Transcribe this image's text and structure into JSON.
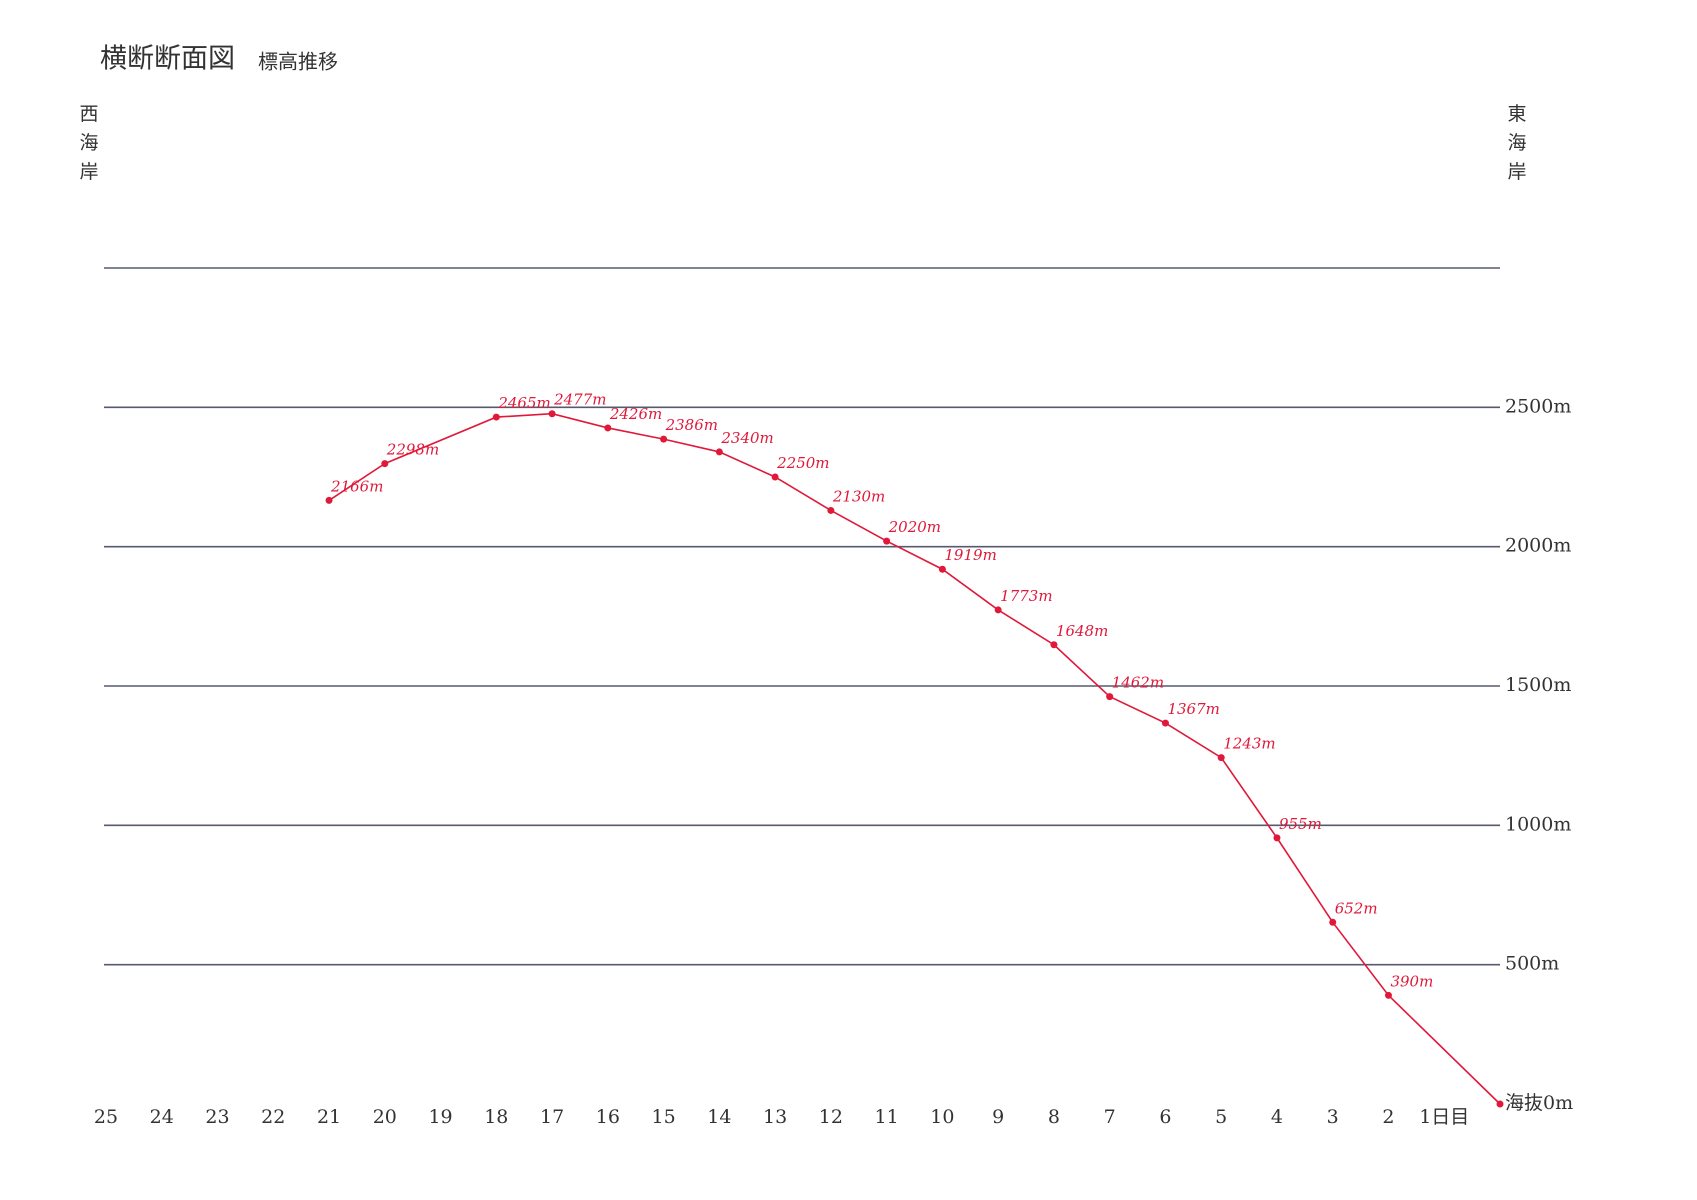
{
  "chart_data": {
    "type": "line",
    "title": "横断断面図",
    "subtitle": "標高推移",
    "left_label": "西海岸",
    "right_label": "東海岸",
    "x": [
      21,
      20,
      18,
      17,
      16,
      15,
      14,
      13,
      12,
      11,
      10,
      9,
      8,
      7,
      6,
      5,
      4,
      3,
      2,
      0
    ],
    "series": [
      {
        "color": "#e0193a",
        "values": [
          2166,
          2298,
          2465,
          2477,
          2426,
          2386,
          2340,
          2250,
          2130,
          2020,
          1919,
          1773,
          1648,
          1462,
          1367,
          1243,
          955,
          652,
          390,
          0
        ],
        "value_labels": [
          "2166m",
          "2298m",
          "2465m",
          "2477m",
          "2426m",
          "2386m",
          "2340m",
          "2250m",
          "2130m",
          "2020m",
          "1919m",
          "1773m",
          "1648m",
          "1462m",
          "1367m",
          "1243m",
          "955m",
          "652m",
          "390m",
          null
        ]
      }
    ],
    "xlim": [
      25,
      0
    ],
    "xticks": [
      25,
      24,
      23,
      22,
      21,
      20,
      19,
      18,
      17,
      16,
      15,
      14,
      13,
      12,
      11,
      10,
      9,
      8,
      7,
      6,
      5,
      4,
      3,
      2,
      {
        "value": 1,
        "label": "1日目"
      }
    ],
    "ylim": [
      0,
      3000
    ],
    "yticks": [
      {
        "value": 0,
        "label": "海抜0m"
      },
      {
        "value": 500,
        "label": "500m"
      },
      {
        "value": 1000,
        "label": "1000m"
      },
      {
        "value": 1500,
        "label": "1500m"
      },
      {
        "value": 2000,
        "label": "2000m"
      },
      {
        "value": 2500,
        "label": "2500m"
      },
      {
        "value": 3000,
        "label": null
      }
    ],
    "grid": true,
    "grid_color": "#555a70"
  }
}
